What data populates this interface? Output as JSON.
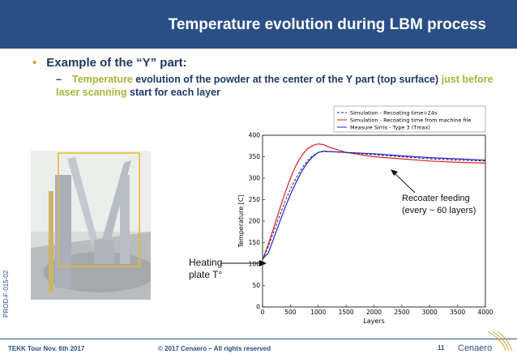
{
  "header": {
    "title": "Temperature evolution during LBM process"
  },
  "bullet": {
    "dot": "•",
    "text": "Example of the “Y” part:"
  },
  "sub": {
    "dash": "–",
    "part1": "Temperature",
    "part2": " evolution of the powder at the center of the Y part (top surface) ",
    "part3": "just before laser scanning",
    "part4": " start for each layer"
  },
  "side_label": "PROD-F-015-02",
  "annotations": {
    "heating_line1": "Heating",
    "heating_line2": "plate T°",
    "recoater_line1": "Recoater feeding",
    "recoater_line2": "(every ~ 60 layers)"
  },
  "footer": {
    "left": "TEKK Tour Nov. 6th 2017",
    "middle": "© 2017 Cenaero – All rights reserved",
    "page": "11",
    "logo": "Cenaero"
  },
  "colors": {
    "header": "#2a4f86",
    "highlight": "#a7b53a",
    "series_sim_24s": "#1a1a6e",
    "series_sim_machine": "#e02020",
    "series_measure": "#2222cc"
  },
  "chart_data": {
    "type": "line",
    "xlabel": "Layers",
    "ylabel": "Temperature [C]",
    "xlim": [
      0,
      4000
    ],
    "ylim": [
      0,
      400
    ],
    "xticks": [
      0,
      500,
      1000,
      1500,
      2000,
      2500,
      3000,
      3500,
      4000
    ],
    "yticks": [
      0,
      50,
      100,
      150,
      200,
      250,
      300,
      350,
      400
    ],
    "legend_position": "top-right",
    "series": [
      {
        "name": "Simulation - Recoating time=24s",
        "style": "dashed",
        "x": [
          0,
          100,
          200,
          300,
          400,
          500,
          600,
          700,
          800,
          900,
          1000,
          1100,
          1200,
          1500,
          2000,
          2500,
          3000,
          3500,
          4000
        ],
        "y": [
          110,
          140,
          175,
          210,
          245,
          275,
          300,
          322,
          340,
          352,
          360,
          362,
          362,
          360,
          355,
          350,
          345,
          342,
          340
        ]
      },
      {
        "name": "Simulation - Recoating time from machine file",
        "style": "solid",
        "x": [
          0,
          100,
          200,
          300,
          400,
          500,
          600,
          700,
          800,
          900,
          1000,
          1100,
          1200,
          1500,
          2000,
          2500,
          3000,
          3500,
          4000
        ],
        "y": [
          110,
          145,
          185,
          225,
          265,
          300,
          330,
          352,
          368,
          376,
          380,
          378,
          372,
          360,
          350,
          345,
          340,
          337,
          335
        ]
      },
      {
        "name": "Measure Sirris - Type 3 (Tmax)",
        "style": "solid",
        "x": [
          0,
          100,
          200,
          300,
          400,
          500,
          600,
          700,
          800,
          900,
          1000,
          1100,
          1200,
          1500,
          2000,
          2500,
          3000,
          3500,
          4000
        ],
        "y": [
          112,
          125,
          160,
          195,
          230,
          262,
          290,
          315,
          335,
          350,
          360,
          363,
          362,
          360,
          357,
          352,
          348,
          345,
          342
        ]
      }
    ]
  }
}
